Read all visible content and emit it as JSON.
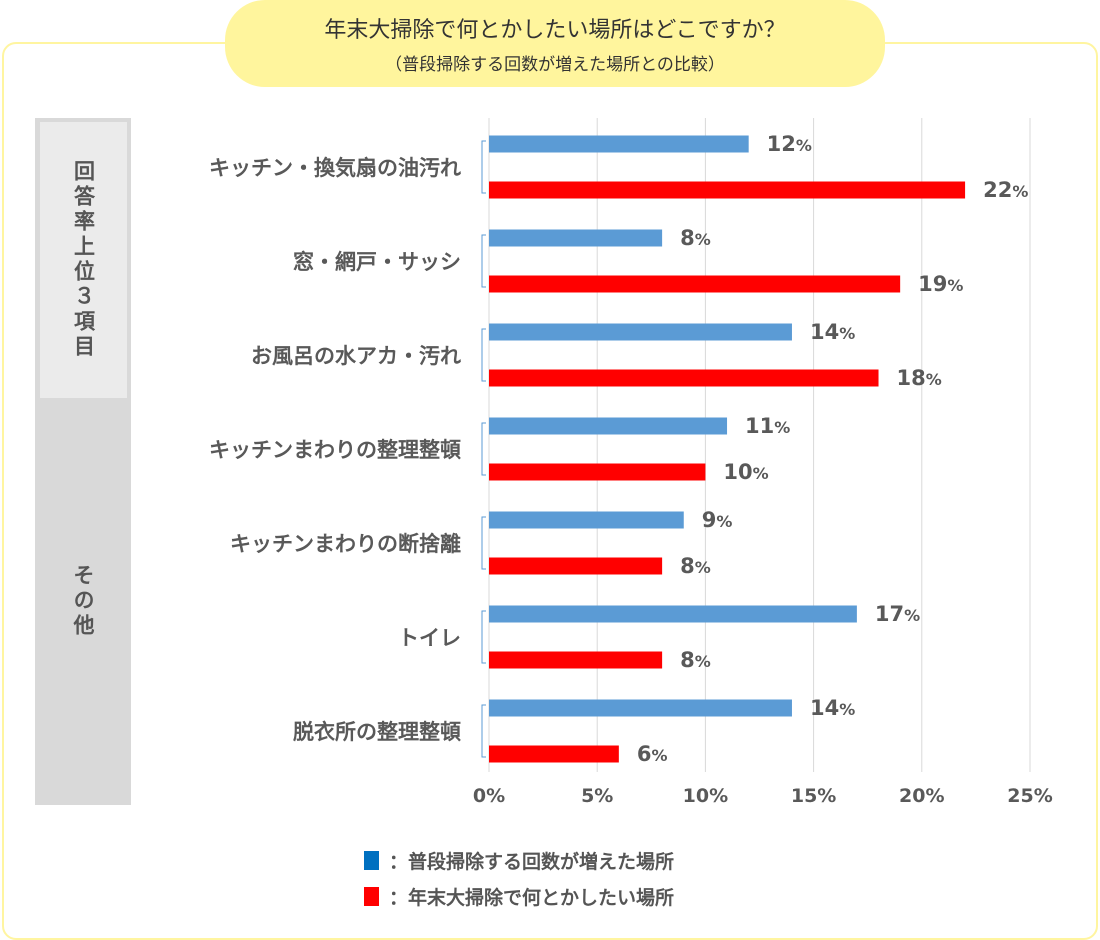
{
  "title": "年末大掃除で何とかしたい場所はどこですか？",
  "subtitle": "（普段掃除する回数が増えた場所との比較）",
  "side_labels": {
    "top": "回答率上位３項目",
    "other": "その他"
  },
  "chart_data": {
    "type": "bar",
    "orientation": "horizontal",
    "categories": [
      "キッチン・換気扇の油汚れ",
      "窓・網戸・サッシ",
      "お風呂の水アカ・汚れ",
      "キッチンまわりの整理整頓",
      "キッチンまわりの断捨離",
      "トイレ",
      "脱衣所の整理整頓"
    ],
    "series": [
      {
        "name": "普段掃除する回数が増えた場所",
        "color": "#5b9bd5",
        "values": [
          12,
          8,
          14,
          11,
          9,
          17,
          14
        ]
      },
      {
        "name": "年末大掃除で何とかしたい場所",
        "color": "#ff0000",
        "values": [
          22,
          19,
          18,
          10,
          8,
          8,
          6
        ]
      }
    ],
    "xlim": [
      0,
      25
    ],
    "ticks": [
      "0%",
      "5%",
      "10%",
      "15%",
      "20%",
      "25%"
    ],
    "tick_values": [
      0,
      5,
      10,
      15,
      20,
      25
    ],
    "value_suffix": "%",
    "grid": true,
    "legend_placement": "bottom"
  },
  "legend": [
    {
      "swatch_color": "#0070c0",
      "label": "：普段掃除する回数が増えた場所"
    },
    {
      "swatch_color": "#ff0000",
      "label": "：年末大掃除で何とかしたい場所"
    }
  ]
}
